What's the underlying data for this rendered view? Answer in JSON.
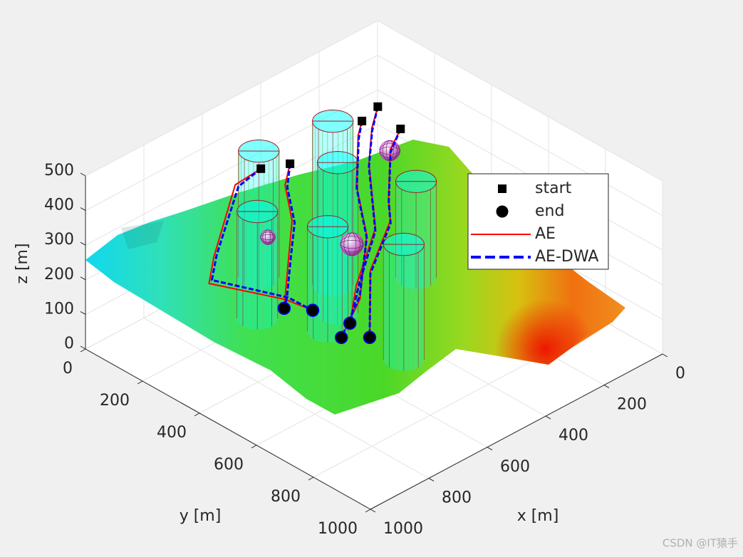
{
  "chart_data": {
    "type": "path3d",
    "xlabel": "x [m]",
    "ylabel": "y [m]",
    "zlabel": "z [m]",
    "xlim": [
      0,
      1000
    ],
    "ylim": [
      0,
      1000
    ],
    "zlim": [
      0,
      500
    ],
    "xticks": [
      0,
      200,
      400,
      600,
      800,
      1000
    ],
    "yticks": [
      0,
      200,
      400,
      600,
      800,
      1000
    ],
    "zticks": [
      0,
      100,
      200,
      300,
      400,
      500
    ],
    "grid": true,
    "legend": "northeast",
    "obstacles": [
      {
        "x": 472,
        "y": 67,
        "r": 50,
        "h": 366
      },
      {
        "x": 364,
        "y": 216,
        "r": 50,
        "h": 473
      },
      {
        "x": 445,
        "y": 316,
        "r": 50,
        "h": 436
      },
      {
        "x": 602,
        "y": 195,
        "r": 50,
        "h": 309
      },
      {
        "x": 518,
        "y": 356,
        "r": 50,
        "h": 302
      },
      {
        "x": 195,
        "y": 335,
        "r": 50,
        "h": 278
      },
      {
        "x": 473,
        "y": 577,
        "r": 50,
        "h": 333
      }
    ],
    "obstacle_color": "#00ffff",
    "threats": [
      {
        "x": 277,
        "y": 327,
        "z": 400,
        "r": 25
      },
      {
        "x": 474,
        "y": 396,
        "z": 250,
        "r": 28
      },
      {
        "x": 600,
        "y": 230,
        "z": 250,
        "r": 18
      }
    ],
    "threat_color": "#cc33cc",
    "series": [
      {
        "name": "AE",
        "color": "#ff0000",
        "style": "solid",
        "paths": [
          {
            "x": [
              582,
              656,
              734,
              740,
              591,
              544
            ],
            "y": [
              187,
              173,
              178,
              167,
              281,
              330
            ],
            "z": [
              420,
              400,
              230,
              150,
              90,
              60
            ]
          },
          {
            "x": [
              526,
              548,
              560,
              591,
              601,
              599
            ],
            "y": [
              232,
              237,
              274,
              294,
              291,
              286
            ],
            "z": [
              430,
              380,
              300,
              220,
              100,
              70
            ]
          },
          {
            "x": [
              309,
              317,
              368,
              397,
              501,
              557
            ],
            "y": [
              262,
              257,
              303,
              369,
              452,
              444
            ],
            "z": [
              470,
              430,
              330,
              230,
              130,
              40
            ]
          },
          {
            "x": [
              247,
              281,
              322,
              382,
              485,
              519
            ],
            "y": [
              254,
              268,
              300,
              384,
              423,
              435
            ],
            "z": [
              480,
              440,
              370,
              250,
              150,
              60
            ]
          },
          {
            "x": [
              255,
              294,
              345,
              365,
              448,
              507
            ],
            "y": [
              342,
              346,
              392,
              419,
              434,
              492
            ],
            "z": [
              460,
              420,
              320,
              280,
              180,
              40
            ]
          }
        ]
      },
      {
        "name": "AE-DWA",
        "color": "#0000ff",
        "style": "dashed",
        "paths": [
          {
            "x": [
              582,
              650,
              728,
              735,
              585,
              544
            ],
            "y": [
              187,
              178,
              182,
              172,
              286,
              330
            ],
            "z": [
              420,
              395,
              235,
              160,
              95,
              60
            ]
          },
          {
            "x": [
              526,
              545,
              556,
              588,
              598,
              599
            ],
            "y": [
              232,
              242,
              279,
              298,
              295,
              286
            ],
            "z": [
              430,
              375,
              295,
              215,
              105,
              70
            ]
          },
          {
            "x": [
              309,
              320,
              372,
              400,
              498,
              557
            ],
            "y": [
              262,
              262,
              308,
              372,
              448,
              444
            ],
            "z": [
              470,
              425,
              325,
              225,
              135,
              40
            ]
          },
          {
            "x": [
              247,
              284,
              326,
              386,
              480,
              519
            ],
            "y": [
              254,
              272,
              304,
              388,
              428,
              435
            ],
            "z": [
              480,
              435,
              365,
              245,
              155,
              60
            ]
          },
          {
            "x": [
              255,
              297,
              348,
              368,
              452,
              507
            ],
            "y": [
              342,
              350,
              396,
              423,
              438,
              492
            ],
            "z": [
              460,
              415,
              315,
              275,
              175,
              40
            ]
          }
        ]
      }
    ],
    "markers": [
      {
        "name": "start",
        "shape": "square",
        "color": "#000000",
        "x": [
          582,
          526,
          309,
          247,
          255
        ],
        "y": [
          187,
          232,
          262,
          254,
          342
        ],
        "z": [
          420,
          430,
          470,
          480,
          460
        ]
      },
      {
        "name": "end",
        "shape": "circle",
        "color": "#000000",
        "x": [
          544,
          599,
          557,
          519,
          507
        ],
        "y": [
          330,
          286,
          444,
          435,
          492
        ],
        "z": [
          60,
          70,
          40,
          60,
          40
        ]
      }
    ]
  },
  "watermark": "CSDN @IT猿手"
}
